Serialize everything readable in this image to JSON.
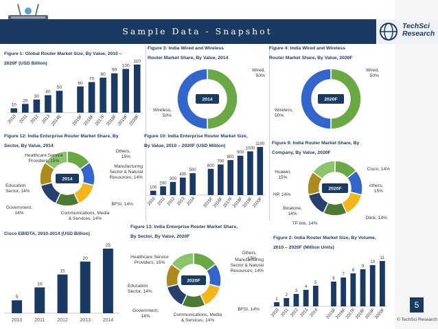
{
  "header": {
    "title": "Sample Data - Snapshot"
  },
  "logo": {
    "line1": "TechSci",
    "line2": "Research"
  },
  "page_number": "5",
  "copyright": "© TechSci Research",
  "colors": {
    "navy": "#1b3a63",
    "green": "#6aa843",
    "blue": "#3366cc",
    "gold": "#f2b51a",
    "darkgreen": "#4d7a33",
    "darknavy": "#27406f",
    "olive": "#ac8b1e",
    "lightgreen": "#8cc46c"
  },
  "chart_data": [
    {
      "id": "fig1",
      "type": "bar",
      "title_line1": "Figure 1: Global Router Market Size, By Value, 2010 –",
      "title_line2": "2020F (USD Billion)",
      "categories": [
        "2010",
        "2011",
        "2012",
        "2013",
        "2014E",
        "2015F",
        "2016F",
        "2017F",
        "2018F",
        "2019F",
        "2020F"
      ],
      "values": [
        10,
        20,
        30,
        40,
        50,
        60,
        70,
        80,
        90,
        100,
        110
      ],
      "ylim": [
        0,
        110
      ]
    },
    {
      "id": "fig3",
      "type": "pie",
      "title_line1": "Figure 3: India Wired and Wireless",
      "title_line2": "Router Market Share, By Value, 2014",
      "center_label": "2014",
      "slices": [
        {
          "label": "Wired,",
          "label2": "50%",
          "value": 50
        },
        {
          "label": "Wireless,",
          "label2": "50%",
          "value": 50
        }
      ]
    },
    {
      "id": "fig4",
      "type": "pie",
      "title_line1": "Figure 4: India Wired and Wireless",
      "title_line2": "Router Market Share, By Value, 2020F",
      "center_label": "2020F",
      "slices": [
        {
          "label": "Wired,",
          "label2": "50%",
          "value": 50
        },
        {
          "label": "Wireless,",
          "label2": "50%",
          "value": 50
        }
      ]
    },
    {
      "id": "fig12",
      "type": "pie",
      "title_line1": "Figure 12: India Enterprise Router Market Share, By",
      "title_line2": "Sector, By Value, 2014",
      "center_label": "2014",
      "slices": [
        {
          "label": "Others,",
          "label2": "15%",
          "value": 15
        },
        {
          "label": "Manufacturing",
          "label2": "Sector & Natural",
          "label3": "Resources, 14%",
          "value": 14
        },
        {
          "label": "BFSI, 14%",
          "value": 14
        },
        {
          "label": "Communications, Media",
          "label2": "& Services, 14%",
          "value": 14
        },
        {
          "label": "Government,",
          "label2": "14%",
          "value": 14
        },
        {
          "label": "Education",
          "label2": "Sector, 14%",
          "value": 14
        },
        {
          "label": "Healthcare Service",
          "label2": "Providers, 15%",
          "value": 15
        }
      ]
    },
    {
      "id": "fig10",
      "type": "bar",
      "title_line1": "Figure 10: India Enterprise Router Market Size,",
      "title_line2": "By Value, 2010 – 2020F (USD Million)",
      "categories": [
        "2010",
        "2011",
        "2012",
        "2013",
        "2014",
        "2015F",
        "2016F",
        "2017F",
        "2018F",
        "2019F",
        "2020F"
      ],
      "values": [
        100,
        200,
        300,
        400,
        500,
        600,
        700,
        800,
        900,
        1000,
        1100
      ],
      "ylim": [
        0,
        1100
      ]
    },
    {
      "id": "fig9",
      "type": "pie",
      "title_line1": "Figure 9: India Router Market Share, By",
      "title_line2": "Company, By Value, 2020F",
      "center_label": "2020F",
      "slices": [
        {
          "label": "Cisco, 14%",
          "value": 14
        },
        {
          "label": "others,",
          "label2": "15%",
          "value": 15
        },
        {
          "label": "Dlink, 14%",
          "value": 14
        },
        {
          "label": "TP link, 14%",
          "value": 14
        },
        {
          "label": "Binatone,",
          "label2": "14%",
          "value": 14
        },
        {
          "label": "HP, 14%",
          "value": 14
        },
        {
          "label": "Huawei,",
          "label2": "15%",
          "value": 15
        }
      ]
    },
    {
      "id": "cisco",
      "type": "bar",
      "title_line1": "Cisco EBIDTA, 2010-2014 (USD Billion)",
      "categories": [
        "2010",
        "2011",
        "2012",
        "2013",
        "2014"
      ],
      "values": [
        5,
        10,
        15,
        20,
        25
      ],
      "ylim": [
        0,
        25
      ]
    },
    {
      "id": "fig13",
      "type": "pie",
      "title_line1": "Figure 13: India Enterprise Router Market Share,",
      "title_line2": "By Sector, By Value, 2020F",
      "center_label": "2020F",
      "slices": [
        {
          "label": "Others,",
          "label2": "15%",
          "value": 15
        },
        {
          "label": "Manufacturing",
          "label2": "Sector & Natural",
          "label3": "Resources, 14%",
          "value": 14
        },
        {
          "label": "BFSI, 14%",
          "value": 14
        },
        {
          "label": "Communications, Media",
          "label2": "& Services, 14%",
          "value": 14
        },
        {
          "label": "Government,",
          "label2": "14%",
          "value": 14
        },
        {
          "label": "Education",
          "label2": "Sector, 14%",
          "value": 14
        },
        {
          "label": "Healthcare Service",
          "label2": "Providers, 15%",
          "value": 15
        }
      ]
    },
    {
      "id": "fig2",
      "type": "bar",
      "title_line1": "Figure 2: India Router Market Size, By Volume,",
      "title_line2": "2010 – 2020F (Million Units)",
      "categories": [
        "2010",
        "2011",
        "2012",
        "2013",
        "2014",
        "2015F",
        "2016F",
        "2017F",
        "2018F",
        "2019F",
        "2020F"
      ],
      "values": [
        1,
        2,
        3,
        4,
        5,
        6,
        7,
        8,
        9,
        10,
        11
      ],
      "ylim": [
        0,
        11
      ]
    }
  ]
}
